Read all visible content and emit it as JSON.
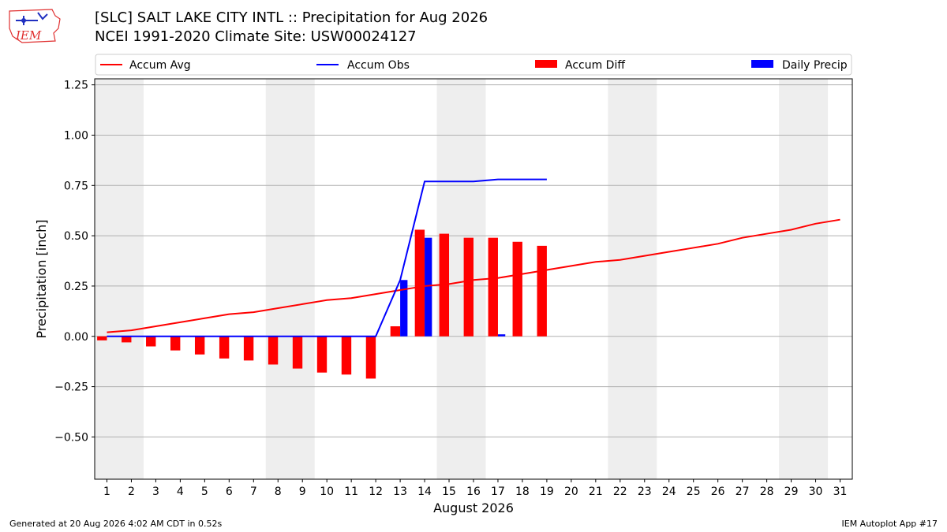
{
  "header": {
    "title_line1": "[SLC] SALT LAKE CITY INTL :: Precipitation for Aug 2026",
    "title_line2": "NCEI 1991-2020 Climate Site: USW00024127",
    "logo_text": "IEM"
  },
  "footer": {
    "generated": "Generated at 20 Aug 2026 4:02 AM CDT in 0.52s",
    "app": "IEM Autoplot App #17"
  },
  "colors": {
    "accum_avg": "#ff0000",
    "accum_obs": "#0000ff",
    "accum_diff": "#ff0000",
    "daily_precip": "#0000ff",
    "weekend_shade": "#eeeeee",
    "grid": "#b0b0b0"
  },
  "chart_data": {
    "type": "bar",
    "xlabel": "August 2026",
    "ylabel": "Precipitation [inch]",
    "xlim": [
      0.5,
      31.5
    ],
    "ylim": [
      -0.71,
      1.28
    ],
    "yticks": [
      -0.5,
      -0.25,
      0.0,
      0.25,
      0.5,
      0.75,
      1.0,
      1.25
    ],
    "ytick_labels": [
      "−0.50",
      "−0.25",
      "0.00",
      "0.25",
      "0.50",
      "0.75",
      "1.00",
      "1.25"
    ],
    "days": [
      1,
      2,
      3,
      4,
      5,
      6,
      7,
      8,
      9,
      10,
      11,
      12,
      13,
      14,
      15,
      16,
      17,
      18,
      19,
      20,
      21,
      22,
      23,
      24,
      25,
      26,
      27,
      28,
      29,
      30,
      31
    ],
    "weekend_bands": [
      [
        1,
        2
      ],
      [
        8,
        9
      ],
      [
        15,
        16
      ],
      [
        22,
        23
      ],
      [
        29,
        30
      ]
    ],
    "grid": true,
    "legend": {
      "position": "top",
      "entries": [
        "Accum Avg",
        "Accum Obs",
        "Accum Diff",
        "Daily Precip"
      ]
    },
    "series": [
      {
        "name": "Accum Avg",
        "kind": "line",
        "color": "#ff0000",
        "x": [
          1,
          2,
          3,
          4,
          5,
          6,
          7,
          8,
          9,
          10,
          11,
          12,
          13,
          14,
          15,
          16,
          17,
          18,
          19,
          20,
          21,
          22,
          23,
          24,
          25,
          26,
          27,
          28,
          29,
          30,
          31
        ],
        "values": [
          0.02,
          0.03,
          0.05,
          0.07,
          0.09,
          0.11,
          0.12,
          0.14,
          0.16,
          0.18,
          0.19,
          0.21,
          0.23,
          0.25,
          0.26,
          0.28,
          0.29,
          0.31,
          0.33,
          0.35,
          0.37,
          0.38,
          0.4,
          0.42,
          0.44,
          0.46,
          0.49,
          0.51,
          0.53,
          0.56,
          0.58
        ]
      },
      {
        "name": "Accum Obs",
        "kind": "line",
        "color": "#0000ff",
        "x": [
          1,
          2,
          3,
          4,
          5,
          6,
          7,
          8,
          9,
          10,
          11,
          12,
          13,
          14,
          15,
          16,
          17,
          18,
          19
        ],
        "values": [
          0,
          0,
          0,
          0,
          0,
          0,
          0,
          0,
          0,
          0,
          0,
          0,
          0.28,
          0.77,
          0.77,
          0.77,
          0.78,
          0.78,
          0.78
        ]
      },
      {
        "name": "Accum Diff",
        "kind": "bar",
        "color": "#ff0000",
        "x": [
          1,
          2,
          3,
          4,
          5,
          6,
          7,
          8,
          9,
          10,
          11,
          12,
          13,
          14,
          15,
          16,
          17,
          18,
          19
        ],
        "values": [
          -0.02,
          -0.03,
          -0.05,
          -0.07,
          -0.09,
          -0.11,
          -0.12,
          -0.14,
          -0.16,
          -0.18,
          -0.19,
          -0.21,
          0.05,
          0.53,
          0.51,
          0.49,
          0.49,
          0.47,
          0.45
        ]
      },
      {
        "name": "Daily Precip",
        "kind": "bar",
        "color": "#0000ff",
        "x": [
          13,
          14,
          17
        ],
        "values": [
          0.28,
          0.49,
          0.01
        ]
      }
    ]
  }
}
